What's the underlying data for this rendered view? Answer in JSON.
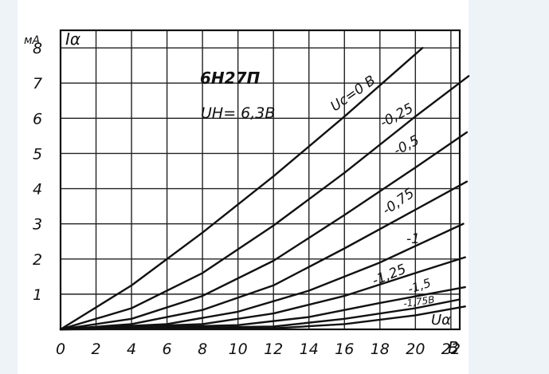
{
  "chart_data": {
    "type": "line",
    "title": "6Н27П",
    "subtitle": "UН= 6,3В",
    "ylabel": "Iα",
    "yunit": "мА",
    "xlabel": "Uα",
    "xunit": "В",
    "xlim": [
      0,
      22.5
    ],
    "ylim": [
      0,
      8.5
    ],
    "x_ticks": [
      "0",
      "2",
      "4",
      "6",
      "8",
      "10",
      "12",
      "14",
      "16",
      "18",
      "20",
      "22"
    ],
    "y_ticks": [
      "1",
      "2",
      "3",
      "4",
      "5",
      "6",
      "7",
      "8"
    ],
    "grid": true,
    "series": [
      {
        "name": "Uc=0 В",
        "points": [
          [
            0,
            0
          ],
          [
            4,
            1.25
          ],
          [
            8,
            2.75
          ],
          [
            12,
            4.35
          ],
          [
            16,
            6.05
          ],
          [
            20.4,
            8.0
          ]
        ]
      },
      {
        "name": "-0,25",
        "points": [
          [
            0,
            0
          ],
          [
            4,
            0.6
          ],
          [
            8,
            1.6
          ],
          [
            12,
            2.95
          ],
          [
            16,
            4.45
          ],
          [
            20,
            6.05
          ],
          [
            23,
            7.2
          ]
        ]
      },
      {
        "name": "-0,5",
        "points": [
          [
            0,
            0
          ],
          [
            4,
            0.3
          ],
          [
            8,
            0.95
          ],
          [
            12,
            1.95
          ],
          [
            16,
            3.25
          ],
          [
            20,
            4.6
          ],
          [
            22.9,
            5.6
          ]
        ]
      },
      {
        "name": "-0,75",
        "points": [
          [
            0,
            0
          ],
          [
            4,
            0.15
          ],
          [
            8,
            0.55
          ],
          [
            12,
            1.25
          ],
          [
            16,
            2.3
          ],
          [
            20,
            3.4
          ],
          [
            22.9,
            4.2
          ]
        ]
      },
      {
        "name": "-1",
        "points": [
          [
            0,
            0
          ],
          [
            6,
            0.15
          ],
          [
            10,
            0.5
          ],
          [
            14,
            1.1
          ],
          [
            18,
            1.9
          ],
          [
            22.7,
            3.0
          ]
        ]
      },
      {
        "name": "-1,25",
        "points": [
          [
            0,
            0
          ],
          [
            8,
            0.15
          ],
          [
            12,
            0.45
          ],
          [
            16,
            0.95
          ],
          [
            20,
            1.6
          ],
          [
            22.8,
            2.05
          ]
        ]
      },
      {
        "name": "-1,5",
        "points": [
          [
            0,
            0
          ],
          [
            10,
            0.12
          ],
          [
            14,
            0.35
          ],
          [
            18,
            0.75
          ],
          [
            22.8,
            1.2
          ]
        ]
      },
      {
        "name": "-1,75В",
        "points": [
          [
            0,
            0
          ],
          [
            12,
            0.08
          ],
          [
            16,
            0.3
          ],
          [
            20,
            0.6
          ],
          [
            22.5,
            0.85
          ]
        ]
      },
      {
        "name": "",
        "points": [
          [
            0,
            0
          ],
          [
            12,
            0.03
          ],
          [
            16,
            0.15
          ],
          [
            20,
            0.4
          ],
          [
            22.8,
            0.65
          ]
        ]
      }
    ]
  }
}
